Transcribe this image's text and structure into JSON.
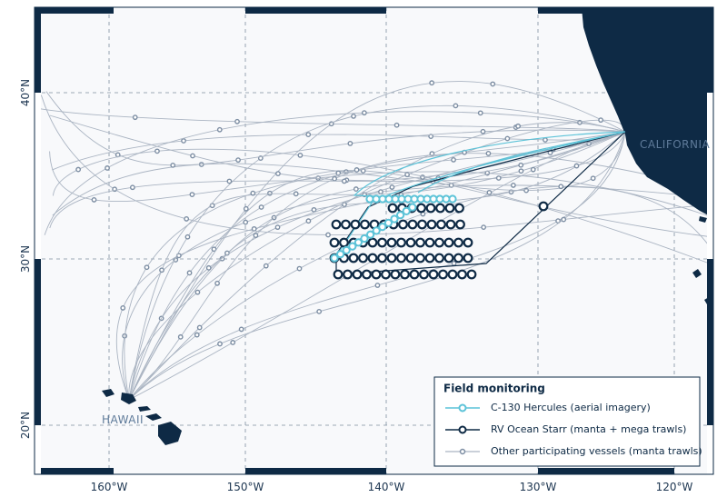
{
  "map": {
    "longitude_labels": [
      "160°W",
      "150°W",
      "140°W",
      "130°W",
      "120°W"
    ],
    "latitude_labels": [
      "40°N",
      "30°N",
      "20°N"
    ],
    "place_labels": [
      "CALIFORNIA",
      "HAWAII"
    ]
  },
  "legend": {
    "title": "Field monitoring",
    "entries": [
      "C-130 Hercules (aerial imagery)",
      "RV Ocean Starr (manta + mega trawls)",
      "Other participating vessels (manta trawls)"
    ]
  }
}
